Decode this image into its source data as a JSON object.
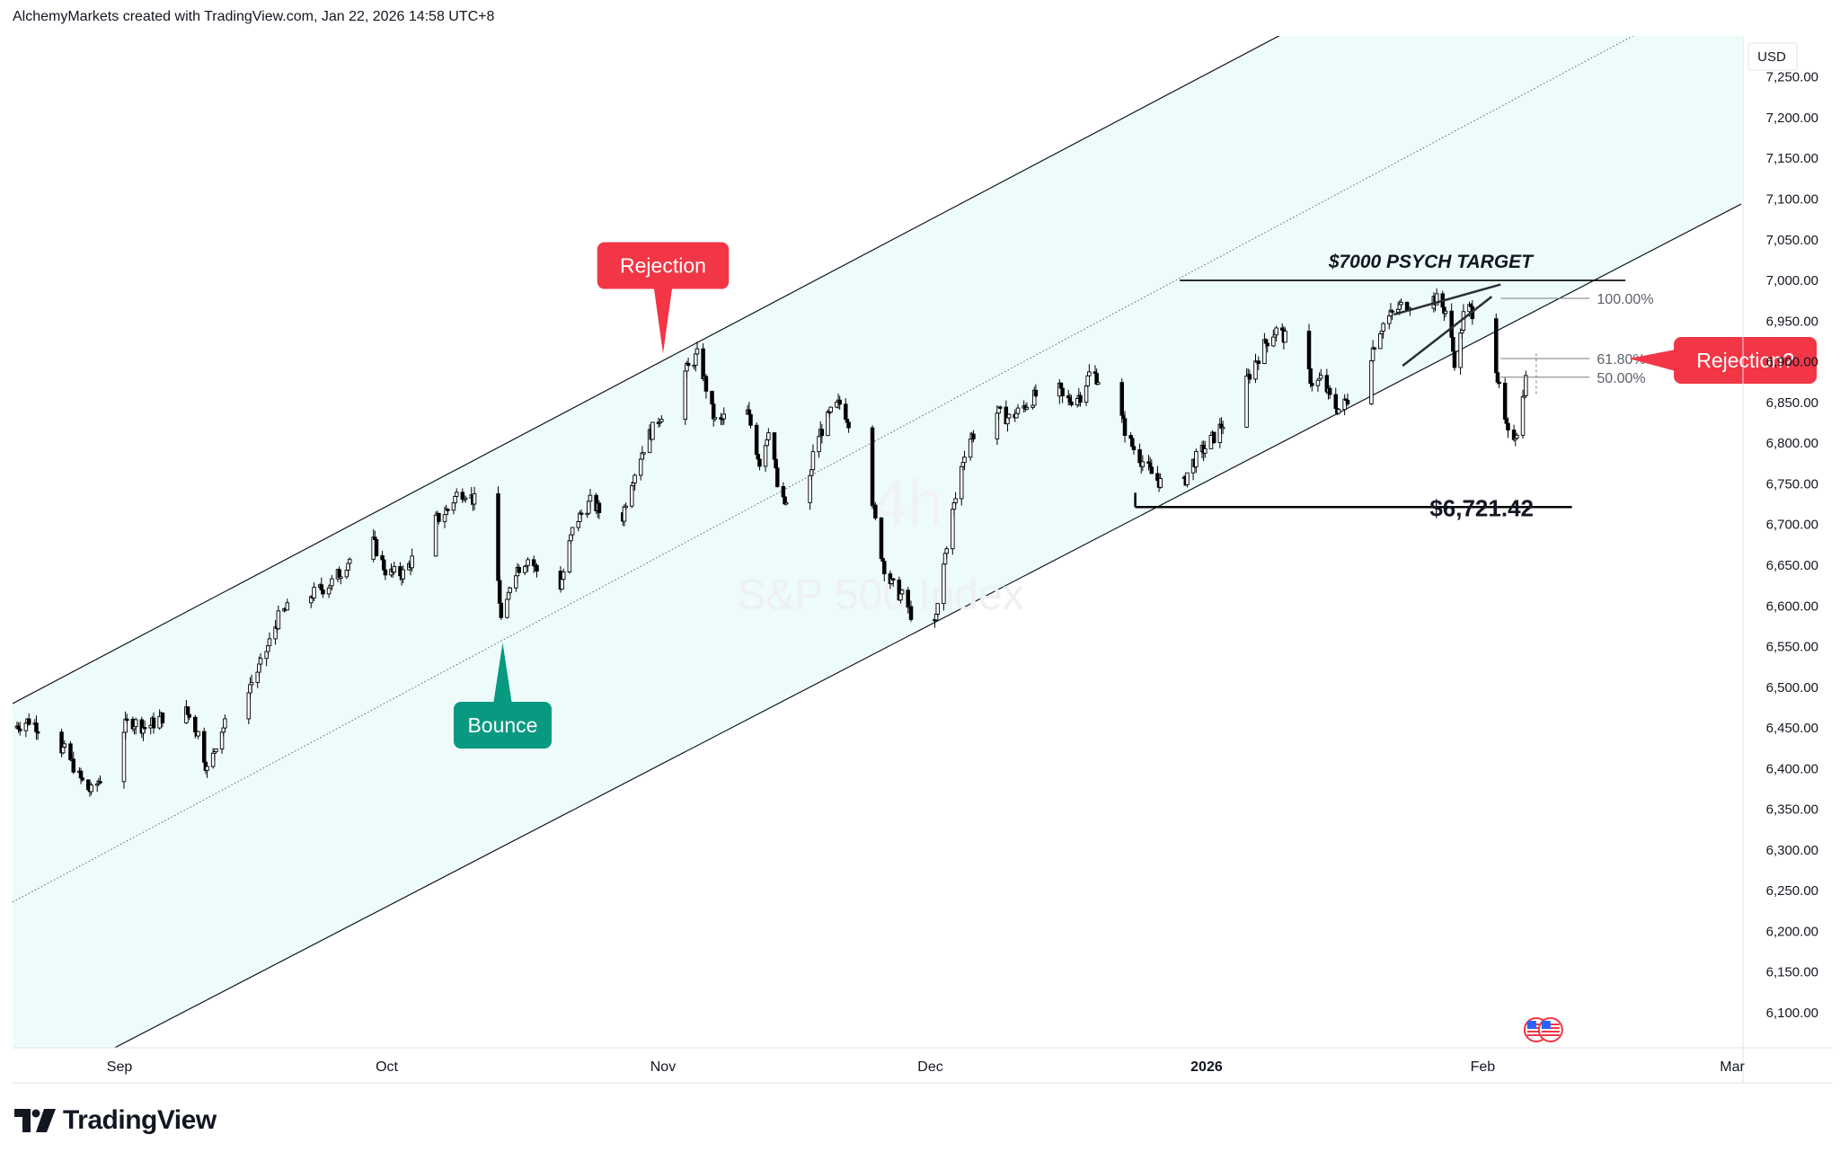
{
  "header": {
    "credit": "AlchemyMarkets created with TradingView.com, Jan 22, 2026 14:58 UTC+8"
  },
  "watermark": {
    "interval": "4h",
    "symbol": "S&P 500 Index"
  },
  "logo": {
    "text": "TradingView",
    "icon": "tradingview-logo-icon"
  },
  "colors": {
    "channel_fill": "#eefbfb",
    "channel_line": "#131722",
    "candle_up": "#ffffff",
    "candle_down": "#000000",
    "rejection_red": "#f23645",
    "bounce_green": "#089981",
    "axis_text": "#131722",
    "fib_line": "#787b86"
  },
  "chart_data": {
    "type": "candlestick",
    "y_axis": {
      "currency": "USD",
      "ylim": [
        6060,
        7290
      ],
      "ticks": [
        6100,
        6150,
        6200,
        6250,
        6300,
        6350,
        6400,
        6450,
        6500,
        6550,
        6600,
        6650,
        6700,
        6750,
        6800,
        6850,
        6900,
        6950,
        7000,
        7050,
        7100,
        7150,
        7200,
        7250
      ],
      "tick_labels": [
        "6,100.00",
        "6,150.00",
        "6,200.00",
        "6,250.00",
        "6,300.00",
        "6,350.00",
        "6,400.00",
        "6,450.00",
        "6,500.00",
        "6,550.00",
        "6,600.00",
        "6,650.00",
        "6,700.00",
        "6,750.00",
        "6,800.00",
        "6,850.00",
        "6,900.00",
        "6,950.00",
        "7,000.00",
        "7,050.00",
        "7,100.00",
        "7,150.00",
        "7,200.00",
        "7,250.00"
      ]
    },
    "x_axis": {
      "range": [
        "2025-08-20",
        "2026-03-02"
      ],
      "ticks": [
        {
          "date": "2025-09-01",
          "label": "Sep",
          "bold": false
        },
        {
          "date": "2025-10-01",
          "label": "Oct",
          "bold": false
        },
        {
          "date": "2025-11-01",
          "label": "Nov",
          "bold": false
        },
        {
          "date": "2025-12-01",
          "label": "Dec",
          "bold": false
        },
        {
          "date": "2026-01-01",
          "label": "2026",
          "bold": true
        },
        {
          "date": "2026-02-01",
          "label": "Feb",
          "bold": false
        },
        {
          "date": "2026-03-01",
          "label": "Mar",
          "bold": false
        }
      ]
    },
    "anchors": [
      [
        "2025-08-20",
        6450
      ],
      [
        "2025-08-22",
        6460
      ],
      [
        "2025-08-26",
        6420
      ],
      [
        "2025-08-28",
        6380
      ],
      [
        "2025-08-29",
        6370
      ],
      [
        "2025-09-02",
        6460
      ],
      [
        "2025-09-04",
        6450
      ],
      [
        "2025-09-08",
        6480
      ],
      [
        "2025-09-10",
        6440
      ],
      [
        "2025-09-11",
        6390
      ],
      [
        "2025-09-12",
        6440
      ],
      [
        "2025-09-15",
        6490
      ],
      [
        "2025-09-17",
        6530
      ],
      [
        "2025-09-19",
        6590
      ],
      [
        "2025-09-22",
        6610
      ],
      [
        "2025-09-25",
        6630
      ],
      [
        "2025-09-29",
        6690
      ],
      [
        "2025-10-01",
        6640
      ],
      [
        "2025-10-03",
        6640
      ],
      [
        "2025-10-06",
        6700
      ],
      [
        "2025-10-08",
        6720
      ],
      [
        "2025-10-09",
        6740
      ],
      [
        "2025-10-10",
        6740
      ],
      [
        "2025-10-13",
        6700
      ],
      [
        "2025-10-14",
        6560
      ],
      [
        "2025-10-15",
        6640
      ],
      [
        "2025-10-17",
        6660
      ],
      [
        "2025-10-20",
        6600
      ],
      [
        "2025-10-22",
        6700
      ],
      [
        "2025-10-24",
        6730
      ],
      [
        "2025-10-27",
        6680
      ],
      [
        "2025-10-28",
        6740
      ],
      [
        "2025-10-30",
        6800
      ],
      [
        "2025-11-01",
        6840
      ],
      [
        "2025-11-03",
        6880
      ],
      [
        "2025-11-05",
        6910
      ],
      [
        "2025-11-06",
        6860
      ],
      [
        "2025-11-07",
        6820
      ],
      [
        "2025-11-10",
        6860
      ],
      [
        "2025-11-12",
        6770
      ],
      [
        "2025-11-13",
        6830
      ],
      [
        "2025-11-14",
        6730
      ],
      [
        "2025-11-17",
        6710
      ],
      [
        "2025-11-18",
        6800
      ],
      [
        "2025-11-20",
        6840
      ],
      [
        "2025-11-21",
        6850
      ],
      [
        "2025-11-24",
        6770
      ],
      [
        "2025-11-25",
        6690
      ],
      [
        "2025-11-26",
        6640
      ],
      [
        "2025-11-27",
        6620
      ],
      [
        "2025-11-28",
        6610
      ],
      [
        "2025-12-01",
        6540
      ],
      [
        "2025-12-02",
        6610
      ],
      [
        "2025-12-03",
        6690
      ],
      [
        "2025-12-04",
        6740
      ],
      [
        "2025-12-05",
        6800
      ],
      [
        "2025-12-08",
        6840
      ],
      [
        "2025-12-10",
        6830
      ],
      [
        "2025-12-12",
        6850
      ],
      [
        "2025-12-15",
        6880
      ],
      [
        "2025-12-16",
        6850
      ],
      [
        "2025-12-18",
        6860
      ],
      [
        "2025-12-19",
        6890
      ],
      [
        "2025-12-22",
        6850
      ],
      [
        "2025-12-23",
        6810
      ],
      [
        "2025-12-24",
        6790
      ],
      [
        "2025-12-26",
        6760
      ],
      [
        "2025-12-29",
        6730
      ],
      [
        "2025-12-30",
        6770
      ],
      [
        "2026-01-02",
        6810
      ],
      [
        "2026-01-05",
        6860
      ],
      [
        "2026-01-06",
        6890
      ],
      [
        "2026-01-08",
        6930
      ],
      [
        "2026-01-09",
        6940
      ],
      [
        "2026-01-12",
        6900
      ],
      [
        "2026-01-13",
        6870
      ],
      [
        "2026-01-14",
        6880
      ],
      [
        "2026-01-15",
        6850
      ],
      [
        "2026-01-16",
        6840
      ],
      [
        "2026-01-19",
        6890
      ],
      [
        "2026-01-20",
        6930
      ],
      [
        "2026-01-21",
        6950
      ],
      [
        "2026-01-22",
        6960
      ],
      [
        "2026-01-23",
        6970
      ],
      [
        "2026-01-26",
        6980
      ],
      [
        "2026-01-27",
        6975
      ],
      [
        "2026-01-28",
        6960
      ],
      [
        "2026-01-29",
        6890
      ],
      [
        "2026-01-30",
        6970
      ],
      [
        "2026-02-02",
        6940
      ],
      [
        "2026-02-03",
        6850
      ],
      [
        "2026-02-04",
        6800
      ],
      [
        "2026-02-05",
        6820
      ],
      [
        "2026-02-06",
        6890
      ]
    ],
    "channel": {
      "lower": [
        [
          "2025-09-01",
          6060
        ],
        [
          "2026-02-17",
          7020
        ]
      ],
      "upper": [
        [
          "2025-08-20",
          6480
        ],
        [
          "2025-11-01",
          6920
        ],
        [
          "2026-03-02",
          7600
        ]
      ]
    },
    "horizontal_levels": [
      {
        "label": "$7000 PSYCH TARGET",
        "value": 7000,
        "from": "2025-12-29",
        "to": "2026-02-17"
      },
      {
        "label": "$6,721.42",
        "value": 6721.42,
        "from": "2025-12-24",
        "to": "2026-02-11"
      }
    ],
    "rising_wedge": {
      "upper": [
        [
          "2026-01-22",
          6958
        ],
        [
          "2026-02-03",
          6995
        ]
      ],
      "lower": [
        [
          "2026-01-23",
          6895
        ],
        [
          "2026-02-02",
          6980
        ]
      ]
    },
    "fibonacci": {
      "start_date": "2026-02-03",
      "end_date": "2026-02-13",
      "levels": [
        {
          "label": "100.00%",
          "value": 6978
        },
        {
          "label": "61.80%",
          "value": 6904
        },
        {
          "label": "50.00%",
          "value": 6881
        }
      ]
    },
    "annotations": [
      {
        "label": "Rejection",
        "color": "red",
        "pointer": "down",
        "date": "2025-11-01",
        "value": 6910
      },
      {
        "label": "Bounce",
        "color": "green",
        "pointer": "up",
        "date": "2025-10-14",
        "value": 6555
      },
      {
        "label": "Rejection?",
        "color": "red",
        "pointer": "left",
        "date": "2026-02-17",
        "value": 6904
      }
    ],
    "event_markers": [
      {
        "icon": "us-flag-icon",
        "date": "2026-02-07"
      },
      {
        "icon": "us-flag-icon",
        "date": "2026-02-08"
      }
    ]
  }
}
